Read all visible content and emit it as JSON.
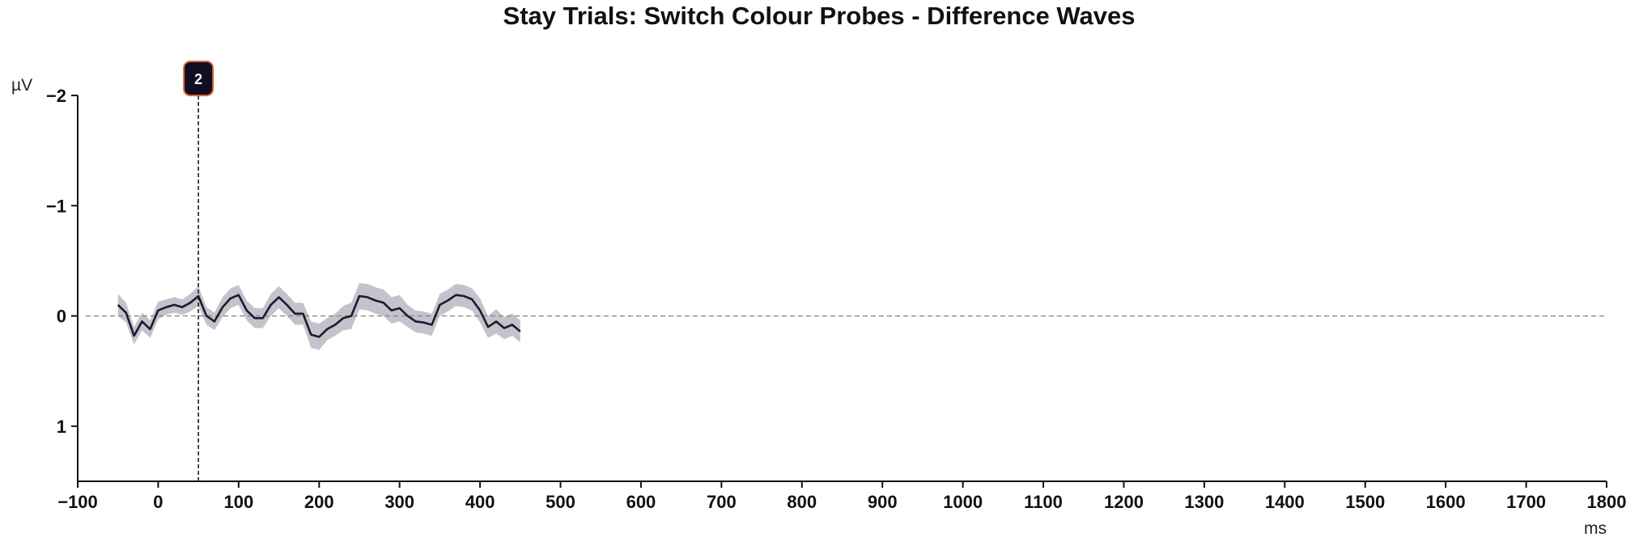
{
  "chart_data": {
    "type": "line",
    "title": "Stay Trials: Switch Colour Probes - Difference Waves",
    "xlabel": "ms",
    "ylabel": "µV",
    "xlim": [
      -100,
      1800
    ],
    "ylim": [
      1.5,
      -2
    ],
    "y_inverted": true,
    "x_ticks": [
      -100,
      0,
      100,
      200,
      300,
      400,
      500,
      600,
      700,
      800,
      900,
      1000,
      1100,
      1200,
      1300,
      1400,
      1500,
      1600,
      1700,
      1800
    ],
    "y_ticks": [
      -2,
      -1,
      0,
      1
    ],
    "zero_line": true,
    "grid": false,
    "marker": {
      "label": "2",
      "x": 50
    },
    "series": [
      {
        "x": [
          -50,
          -40,
          -30,
          -20,
          -10,
          0,
          10,
          20,
          30,
          40,
          50,
          60,
          70,
          80,
          90,
          100,
          110,
          120,
          130,
          140,
          150,
          160,
          170,
          180,
          190,
          200,
          210,
          220,
          230,
          240,
          250,
          260,
          270,
          280,
          290,
          300,
          310,
          320,
          330,
          340,
          350,
          360,
          370,
          380,
          390,
          400,
          410,
          420,
          430,
          440,
          450
        ],
        "values": [
          -0.1,
          -0.03,
          0.18,
          0.05,
          0.12,
          -0.05,
          -0.08,
          -0.1,
          -0.08,
          -0.12,
          -0.18,
          0.0,
          0.05,
          -0.08,
          -0.16,
          -0.19,
          -0.05,
          0.02,
          0.02,
          -0.1,
          -0.17,
          -0.1,
          -0.02,
          -0.02,
          0.17,
          0.19,
          0.12,
          0.08,
          0.02,
          0.0,
          -0.18,
          -0.17,
          -0.14,
          -0.12,
          -0.05,
          -0.07,
          0.0,
          0.05,
          0.06,
          0.08,
          -0.1,
          -0.14,
          -0.19,
          -0.18,
          -0.15,
          -0.05,
          0.1,
          0.05,
          0.11,
          0.08,
          0.14
        ],
        "band_lower": [
          -0.2,
          -0.12,
          0.1,
          -0.03,
          0.04,
          -0.13,
          -0.15,
          -0.17,
          -0.15,
          -0.2,
          -0.27,
          -0.08,
          -0.03,
          -0.17,
          -0.25,
          -0.28,
          -0.14,
          -0.07,
          -0.07,
          -0.2,
          -0.27,
          -0.2,
          -0.12,
          -0.12,
          0.05,
          0.07,
          0.02,
          -0.02,
          -0.09,
          -0.12,
          -0.3,
          -0.29,
          -0.26,
          -0.24,
          -0.17,
          -0.19,
          -0.1,
          -0.05,
          -0.04,
          -0.02,
          -0.2,
          -0.24,
          -0.29,
          -0.28,
          -0.25,
          -0.16,
          0.0,
          -0.06,
          0.01,
          -0.02,
          0.04
        ],
        "band_upper": [
          0.0,
          0.06,
          0.26,
          0.13,
          0.2,
          0.03,
          -0.01,
          -0.03,
          -0.01,
          -0.04,
          -0.09,
          0.08,
          0.13,
          0.01,
          -0.07,
          -0.1,
          0.04,
          0.11,
          0.11,
          0.0,
          -0.07,
          0.0,
          0.08,
          0.08,
          0.29,
          0.31,
          0.22,
          0.18,
          0.13,
          0.12,
          -0.06,
          -0.05,
          -0.02,
          0.0,
          0.07,
          0.05,
          0.1,
          0.15,
          0.16,
          0.18,
          0.0,
          -0.04,
          -0.09,
          -0.08,
          -0.05,
          0.06,
          0.2,
          0.16,
          0.21,
          0.18,
          0.24
        ],
        "color": "#1c1a2e",
        "band_color": "#c4c3cb"
      }
    ]
  }
}
